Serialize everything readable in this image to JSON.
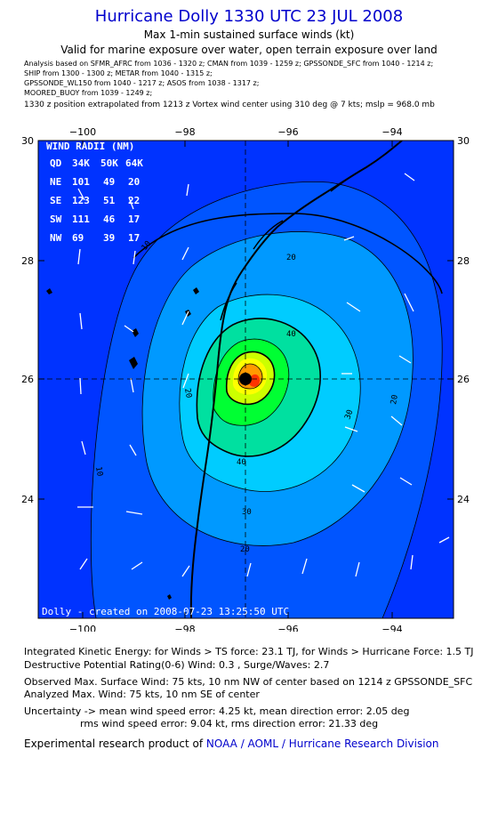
{
  "header": {
    "title": "Hurricane Dolly 1330 UTC 23 JUL 2008",
    "subtitle": "Max 1-min sustained surface winds (kt)",
    "valid_line": "Valid for marine exposure over water, open terrain exposure over land",
    "analysis_lines": [
      "Analysis based on  SFMR_AFRC from 1036 - 1320 z;  CMAN from 1039 - 1259 z;  GPSSONDE_SFC from 1040 - 1214 z;",
      "SHIP from 1300 - 1300 z;  METAR from 1040 - 1315 z;",
      "GPSSONDE_WL150 from 1040 - 1217 z;  ASOS from 1038 - 1317 z;",
      "MOORED_BUOY from 1039 - 1249 z;"
    ],
    "extrapolation": "1330 z position extrapolated from 1213 z Vortex wind center using 310 deg @ 7 kts; mslp = 968.0 mb"
  },
  "map": {
    "lon_ticks": [
      "−100",
      "−98",
      "−96",
      "−94"
    ],
    "lat_ticks": [
      "30",
      "28",
      "26",
      "24"
    ],
    "lon_range": [
      -100.8,
      -92.3
    ],
    "lat_range": [
      22.0,
      30.0
    ],
    "center": {
      "lon": -96.9,
      "lat": 26.0
    },
    "contour_labels": [
      "10",
      "10",
      "20",
      "20",
      "20",
      "30",
      "30",
      "40",
      "40",
      "20",
      "20",
      "40",
      "30",
      "20"
    ],
    "footer": "Dolly - created on 2008-07-23 13:25:50 UTC",
    "colors": {
      "ocean_blue": "#0033ff",
      "band_10": "#0055ff",
      "band_20": "#0099ff",
      "band_30": "#00ccff",
      "band_40": "#00e0a0",
      "band_50": "#00ff33",
      "band_60": "#ccff00",
      "band_64": "#ffff00",
      "band_70": "#ff9900",
      "band_75": "#ff3300",
      "land": "#000000"
    }
  },
  "wind_radii": {
    "title": "WIND RADII (NM)",
    "columns": [
      "QD",
      "34K",
      "50K",
      "64K"
    ],
    "rows": [
      [
        "NE",
        "101",
        "49",
        "20"
      ],
      [
        "SE",
        "123",
        "51",
        "22"
      ],
      [
        "SW",
        "111",
        "46",
        "17"
      ],
      [
        "NW",
        "69",
        "39",
        "17"
      ]
    ]
  },
  "info": {
    "ike": "Integrated Kinetic Energy:  for Winds > TS force: 23.1 TJ,  for Winds > Hurricane Force: 1.5 TJ",
    "dpr": "Destructive Potential Rating(0-6)   Wind: 0.3 , Surge/Waves: 2.7",
    "observed": "Observed Max. Surface Wind: 75 kts, 10 nm NW of center based on 1214 z GPSSONDE_SFC",
    "analyzed": "Analyzed Max. Wind: 75 kts, 10 nm SE of center",
    "uncertainty1": "Uncertainty -> mean wind speed error: 4.25 kt,   mean direction error: 2.05 deg",
    "uncertainty2": "rms wind speed error: 9.04 kt,  rms direction error: 21.33 deg",
    "credit_prefix": "Experimental research product of ",
    "credit_link": "NOAA / AOML / Hurricane Research Division"
  }
}
